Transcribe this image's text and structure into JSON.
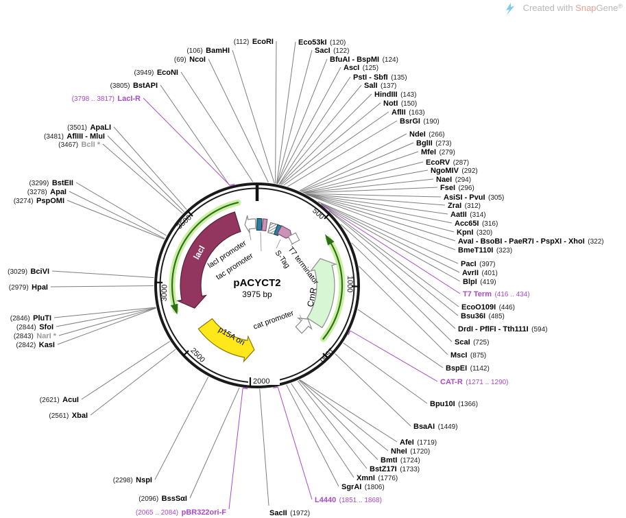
{
  "watermark": {
    "prefix": "Created with ",
    "brand_a": "Snap",
    "brand_b": "Gene",
    "reg": "®"
  },
  "plasmid": {
    "name": "pACYCT2",
    "size": "3975 bp",
    "length_bp": 3975
  },
  "colors": {
    "primer": "#A849C8",
    "enzyme": "#000000",
    "muted_enzyme": "#9A9A9A",
    "gene_maroon": "#92355F",
    "gene_maroon_stroke": "#54213C",
    "ori_yellow": "#FFE81A",
    "ori_yellow_stroke": "#8A7500",
    "cds_pale_green": "#D7F6D3",
    "cds_stroke": "#8C8C8C",
    "orf_band_green": "#C8F0A0",
    "orf_arrow_green": "#2F6E19",
    "promoter_teal": "#2A7F9E",
    "promoter_teal_stroke": "#123F4F",
    "tag_pink": "#CB92B8",
    "tag_pink_stroke": "#7E3F68",
    "ring_black": "#1A1A1A",
    "leader_gray": "#7D7D7D",
    "watermark_gray": "#B8B8B8",
    "watermark_brand": "#E89F98",
    "logo_blue": "#7FCCE8"
  },
  "ticks": [
    {
      "label": "500",
      "bp": 500
    },
    {
      "label": "1000",
      "bp": 1000
    },
    {
      "label": "1500",
      "bp": 1500
    },
    {
      "label": "2000",
      "bp": 2000
    },
    {
      "label": "2500",
      "bp": 2500
    },
    {
      "label": "3000",
      "bp": 3000
    },
    {
      "label": "3500",
      "bp": 3500
    }
  ],
  "features": [
    {
      "label": "lacI"
    },
    {
      "label": "lacI promoter"
    },
    {
      "label": "tac promoter"
    },
    {
      "label": "S-Tag"
    },
    {
      "label": "T7 terminator"
    },
    {
      "label": "CmR"
    },
    {
      "label": "cat promoter"
    },
    {
      "label": "p15A ori"
    }
  ],
  "sites": [
    {
      "name": "EcoRI",
      "pos": "(112)",
      "bp": 112,
      "kind": "enzyme"
    },
    {
      "name": "BamHI",
      "pos": "(106)",
      "bp": 106,
      "kind": "enzyme"
    },
    {
      "name": "NcoI",
      "pos": "(69)",
      "bp": 69,
      "kind": "enzyme"
    },
    {
      "name": "EcoNI",
      "pos": "(3949)",
      "bp": 3949,
      "kind": "enzyme"
    },
    {
      "name": "BstAPI",
      "pos": "(3805)",
      "bp": 3805,
      "kind": "enzyme"
    },
    {
      "name": "LacI-R",
      "pos": "(3798 .. 3817)",
      "bp": 3807,
      "kind": "primer"
    },
    {
      "name": "ApaLI",
      "pos": "(3501)",
      "bp": 3501,
      "kind": "enzyme"
    },
    {
      "name": "AflIII - MluI",
      "pos": "(3481)",
      "bp": 3481,
      "kind": "enzyme"
    },
    {
      "name": "BclI *",
      "pos": "(3467)",
      "bp": 3467,
      "kind": "muted"
    },
    {
      "name": "BstEII",
      "pos": "(3299)",
      "bp": 3299,
      "kind": "enzyme"
    },
    {
      "name": "ApaI",
      "pos": "(3278)",
      "bp": 3278,
      "kind": "enzyme"
    },
    {
      "name": "PspOMI",
      "pos": "(3274)",
      "bp": 3274,
      "kind": "enzyme"
    },
    {
      "name": "BciVI",
      "pos": "(3029)",
      "bp": 3029,
      "kind": "enzyme"
    },
    {
      "name": "HpaI",
      "pos": "(2979)",
      "bp": 2979,
      "kind": "enzyme"
    },
    {
      "name": "PluTI",
      "pos": "(2846)",
      "bp": 2846,
      "kind": "enzyme"
    },
    {
      "name": "SfoI",
      "pos": "(2844)",
      "bp": 2844,
      "kind": "enzyme"
    },
    {
      "name": "NarI *",
      "pos": "(2843)",
      "bp": 2843,
      "kind": "muted"
    },
    {
      "name": "KasI",
      "pos": "(2842)",
      "bp": 2842,
      "kind": "enzyme"
    },
    {
      "name": "AcuI",
      "pos": "(2621)",
      "bp": 2621,
      "kind": "enzyme"
    },
    {
      "name": "XbaI",
      "pos": "(2561)",
      "bp": 2561,
      "kind": "enzyme"
    },
    {
      "name": "NspI",
      "pos": "(2298)",
      "bp": 2298,
      "kind": "enzyme"
    },
    {
      "name": "BssSαI",
      "pos": "(2096)",
      "bp": 2096,
      "kind": "enzyme"
    },
    {
      "name": "pBR322ori-F",
      "pos": "(2065 .. 2084)",
      "bp": 2075,
      "kind": "primer"
    },
    {
      "name": "SacII",
      "pos": "(1972)",
      "bp": 1972,
      "kind": "enzyme"
    },
    {
      "name": "L4440",
      "pos": "(1851 .. 1868)",
      "bp": 1860,
      "kind": "primer"
    },
    {
      "name": "SgrAI",
      "pos": "(1806)",
      "bp": 1806,
      "kind": "enzyme"
    },
    {
      "name": "XmnI",
      "pos": "(1776)",
      "bp": 1776,
      "kind": "enzyme"
    },
    {
      "name": "BstZ17I",
      "pos": "(1733)",
      "bp": 1733,
      "kind": "enzyme"
    },
    {
      "name": "BmtI",
      "pos": "(1724)",
      "bp": 1724,
      "kind": "enzyme"
    },
    {
      "name": "NheI",
      "pos": "(1720)",
      "bp": 1720,
      "kind": "enzyme"
    },
    {
      "name": "AfeI",
      "pos": "(1719)",
      "bp": 1719,
      "kind": "enzyme"
    },
    {
      "name": "BsaAI",
      "pos": "(1449)",
      "bp": 1449,
      "kind": "enzyme"
    },
    {
      "name": "Bpu10I",
      "pos": "(1366)",
      "bp": 1366,
      "kind": "enzyme"
    },
    {
      "name": "CAT-R",
      "pos": "(1271 .. 1290)",
      "bp": 1280,
      "kind": "primer"
    },
    {
      "name": "BspEI",
      "pos": "(1142)",
      "bp": 1142,
      "kind": "enzyme"
    },
    {
      "name": "MscI",
      "pos": "(875)",
      "bp": 875,
      "kind": "enzyme"
    },
    {
      "name": "ScaI",
      "pos": "(725)",
      "bp": 725,
      "kind": "enzyme"
    },
    {
      "name": "DrdI - PflFI - Tth111I",
      "pos": "(594)",
      "bp": 594,
      "kind": "enzyme"
    },
    {
      "name": "Bsu36I",
      "pos": "(485)",
      "bp": 485,
      "kind": "enzyme"
    },
    {
      "name": "EcoO109I",
      "pos": "(446)",
      "bp": 446,
      "kind": "enzyme"
    },
    {
      "name": "T7 Term",
      "pos": "(416 .. 434)",
      "bp": 425,
      "kind": "primer"
    },
    {
      "name": "BlpI",
      "pos": "(419)",
      "bp": 419,
      "kind": "enzyme"
    },
    {
      "name": "AvrII",
      "pos": "(401)",
      "bp": 401,
      "kind": "enzyme"
    },
    {
      "name": "PacI",
      "pos": "(397)",
      "bp": 397,
      "kind": "enzyme"
    },
    {
      "name": "BmeT110I",
      "pos": "(323)",
      "bp": 323,
      "kind": "enzyme"
    },
    {
      "name": "AvaI - BsoBI - PaeR7I - PspXI - XhoI",
      "pos": "(322)",
      "bp": 322,
      "kind": "enzyme"
    },
    {
      "name": "KpnI",
      "pos": "(320)",
      "bp": 320,
      "kind": "enzyme"
    },
    {
      "name": "Acc65I",
      "pos": "(316)",
      "bp": 316,
      "kind": "enzyme"
    },
    {
      "name": "AatII",
      "pos": "(314)",
      "bp": 314,
      "kind": "enzyme"
    },
    {
      "name": "ZraI",
      "pos": "(312)",
      "bp": 312,
      "kind": "enzyme"
    },
    {
      "name": "AsiSI - PvuI",
      "pos": "(305)",
      "bp": 305,
      "kind": "enzyme"
    },
    {
      "name": "FseI",
      "pos": "(296)",
      "bp": 296,
      "kind": "enzyme"
    },
    {
      "name": "NaeI",
      "pos": "(294)",
      "bp": 294,
      "kind": "enzyme"
    },
    {
      "name": "NgoMIV",
      "pos": "(292)",
      "bp": 292,
      "kind": "enzyme"
    },
    {
      "name": "EcoRV",
      "pos": "(287)",
      "bp": 287,
      "kind": "enzyme"
    },
    {
      "name": "MfeI",
      "pos": "(279)",
      "bp": 279,
      "kind": "enzyme"
    },
    {
      "name": "BglII",
      "pos": "(273)",
      "bp": 273,
      "kind": "enzyme"
    },
    {
      "name": "NdeI",
      "pos": "(266)",
      "bp": 266,
      "kind": "enzyme"
    },
    {
      "name": "BsrGI",
      "pos": "(190)",
      "bp": 190,
      "kind": "enzyme"
    },
    {
      "name": "AflII",
      "pos": "(163)",
      "bp": 163,
      "kind": "enzyme"
    },
    {
      "name": "NotI",
      "pos": "(150)",
      "bp": 150,
      "kind": "enzyme"
    },
    {
      "name": "HindIII",
      "pos": "(143)",
      "bp": 143,
      "kind": "enzyme"
    },
    {
      "name": "SalI",
      "pos": "(137)",
      "bp": 137,
      "kind": "enzyme"
    },
    {
      "name": "PstI - SbfI",
      "pos": "(135)",
      "bp": 135,
      "kind": "enzyme"
    },
    {
      "name": "AscI",
      "pos": "(125)",
      "bp": 125,
      "kind": "enzyme"
    },
    {
      "name": "BfuAI - BspMI",
      "pos": "(124)",
      "bp": 124,
      "kind": "enzyme"
    },
    {
      "name": "SacI",
      "pos": "(122)",
      "bp": 122,
      "kind": "enzyme"
    },
    {
      "name": "Eco53kI",
      "pos": "(120)",
      "bp": 120,
      "kind": "enzyme"
    }
  ]
}
